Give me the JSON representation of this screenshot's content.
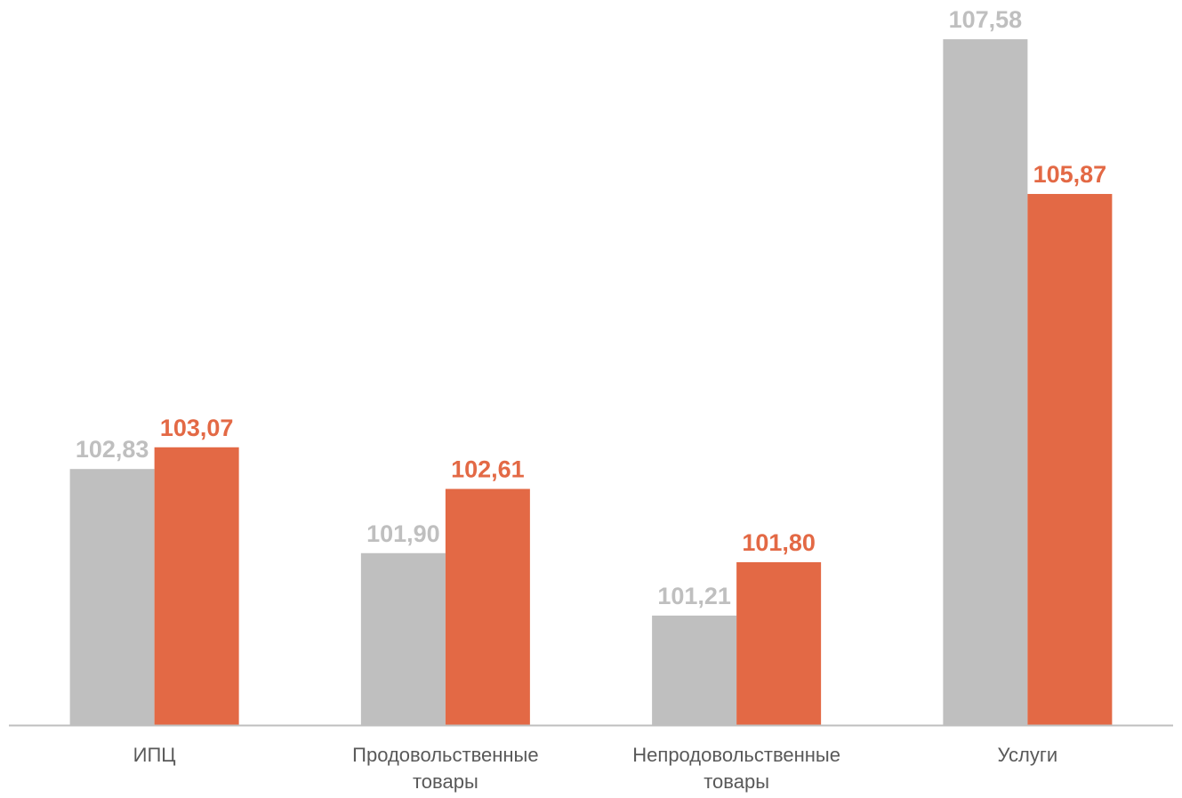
{
  "chart_data": {
    "type": "bar",
    "title": "",
    "xlabel": "",
    "ylabel": "",
    "categories": [
      [
        "ИПЦ"
      ],
      [
        "Продовольственные",
        "товары"
      ],
      [
        "Непродовольственные",
        "товары"
      ],
      [
        "Услуги"
      ]
    ],
    "series": [
      {
        "color": "#bfbfbf",
        "values": [
          102.83,
          101.9,
          101.21,
          107.58
        ],
        "labels": [
          "102,83",
          "101,90",
          "101,21",
          "107,58"
        ]
      },
      {
        "color": "#e36945",
        "values": [
          103.07,
          102.61,
          101.8,
          105.87
        ],
        "labels": [
          "103,07",
          "102,61",
          "101,80",
          "105,87"
        ]
      }
    ],
    "ylim": [
      100.0,
      108.0
    ],
    "grid": false,
    "legend": "none",
    "axis_color": "#bfbfbf"
  }
}
